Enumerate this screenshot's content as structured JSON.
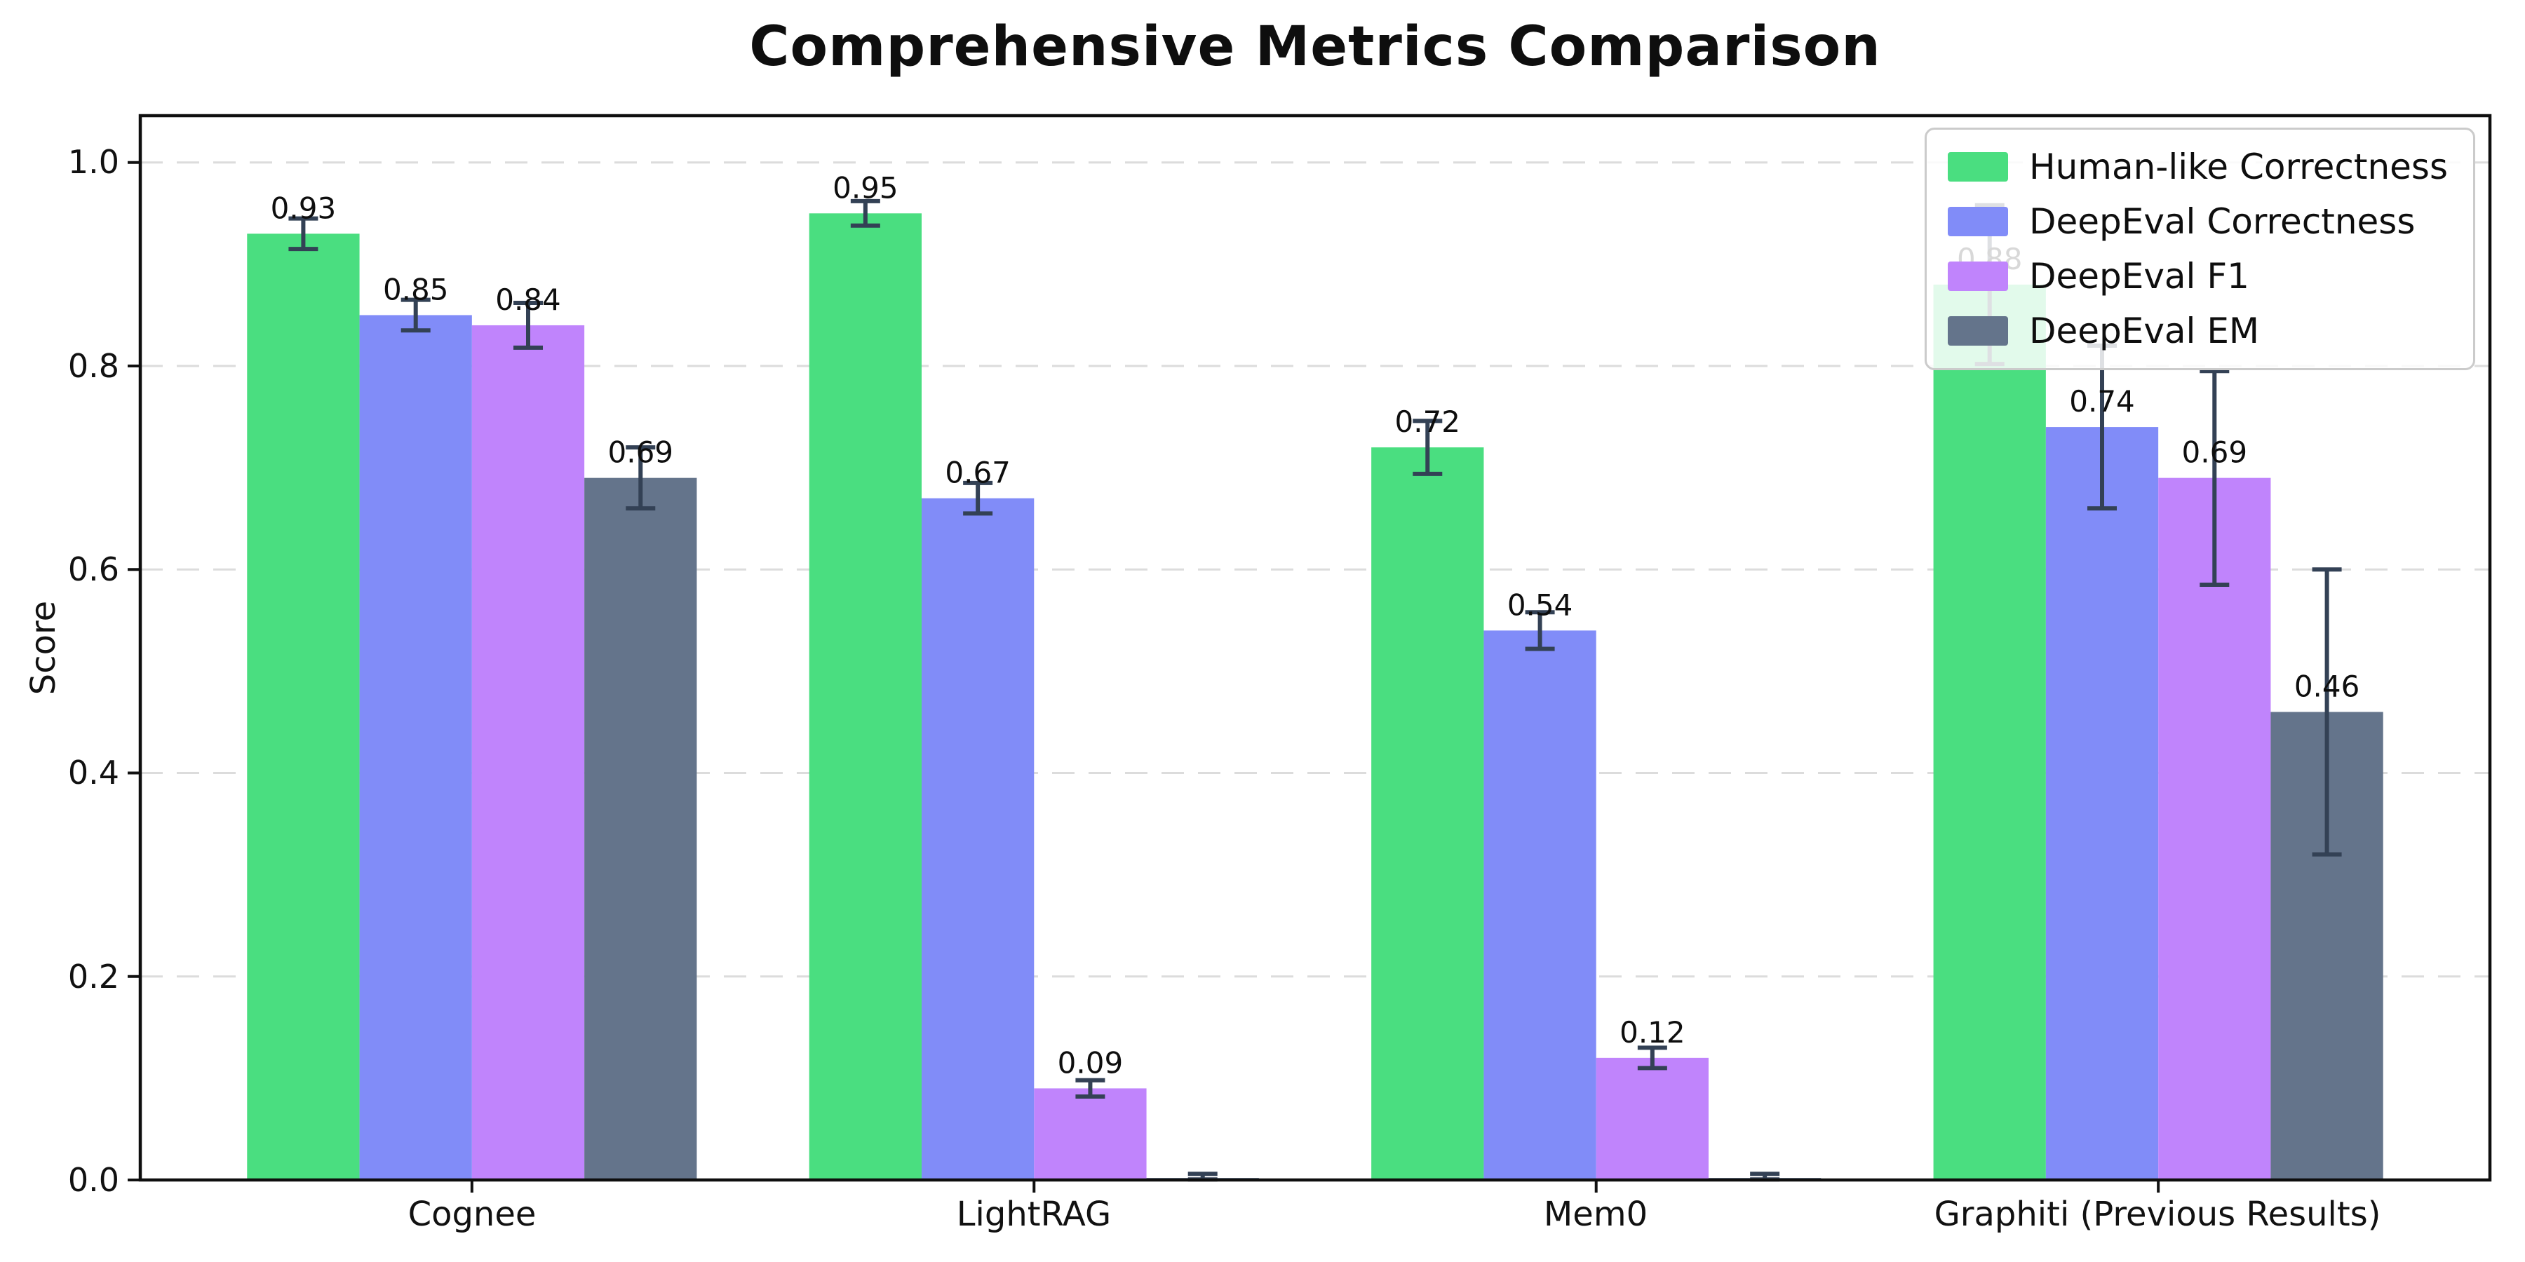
{
  "chart_data": {
    "type": "bar",
    "title": "Comprehensive Metrics Comparison",
    "xlabel": "",
    "ylabel": "Score",
    "categories": [
      "Cognee",
      "LightRAG",
      "Mem0",
      "Graphiti (Previous Results)"
    ],
    "ytick_labels": [
      "0.0",
      "0.2",
      "0.4",
      "0.6",
      "0.8",
      "1.0"
    ],
    "ylim": [
      0,
      1.046
    ],
    "grid": "horizontal-dashed",
    "legend_position": "upper-right",
    "background_color": "#ffffff",
    "error_bar_color": "#334155",
    "series": [
      {
        "name": "Human-like Correctness",
        "color": "#4ade80",
        "values": [
          0.93,
          0.95,
          0.72,
          0.88
        ],
        "errors": [
          0.015,
          0.012,
          0.026,
          0.078
        ],
        "labels": [
          "0.93",
          "0.95",
          "0.72",
          "0.88"
        ]
      },
      {
        "name": "DeepEval Correctness",
        "color": "#818cf8",
        "values": [
          0.85,
          0.67,
          0.54,
          0.74
        ],
        "errors": [
          0.015,
          0.015,
          0.018,
          0.08
        ],
        "labels": [
          "0.85",
          "0.67",
          "0.54",
          "0.74"
        ]
      },
      {
        "name": "DeepEval F1",
        "color": "#c084fc",
        "values": [
          0.84,
          0.09,
          0.12,
          0.69
        ],
        "errors": [
          0.022,
          0.008,
          0.01,
          0.105
        ],
        "labels": [
          "0.84",
          "0.09",
          "0.12",
          "0.69"
        ]
      },
      {
        "name": "DeepEval EM",
        "color": "#64748b",
        "values": [
          0.69,
          0.002,
          0.002,
          0.46
        ],
        "errors": [
          0.03,
          0.004,
          0.004,
          0.14
        ],
        "labels": [
          "0.69",
          "",
          "",
          "0.46"
        ]
      }
    ]
  }
}
